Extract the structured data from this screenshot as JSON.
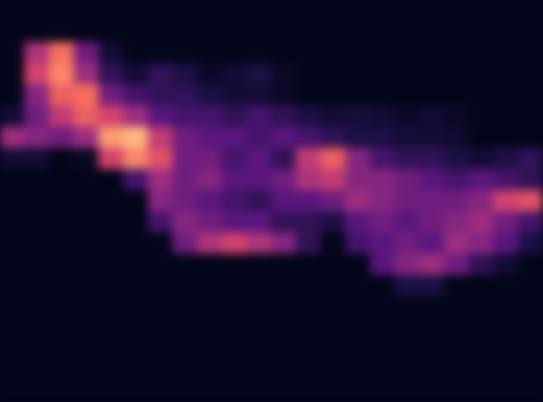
{
  "chart_data": {
    "type": "heatmap",
    "tick_labels": false,
    "zlim": [
      0,
      100
    ],
    "cells": [
      [
        0,
        0,
        0,
        0,
        0,
        0,
        0,
        0,
        0,
        0,
        0,
        0,
        0,
        0,
        0,
        0,
        0,
        0,
        0,
        0,
        0,
        0
      ],
      [
        0,
        0,
        0,
        0,
        0,
        0,
        0,
        0,
        0,
        0,
        0,
        0,
        0,
        0,
        0,
        0,
        0,
        0,
        0,
        0,
        0,
        0
      ],
      [
        0,
        50,
        75,
        35,
        10,
        0,
        0,
        0,
        0,
        0,
        0,
        0,
        0,
        0,
        0,
        0,
        0,
        0,
        0,
        0,
        0,
        0
      ],
      [
        0,
        60,
        80,
        45,
        20,
        10,
        20,
        15,
        5,
        10,
        15,
        5,
        0,
        0,
        0,
        0,
        0,
        0,
        0,
        0,
        0,
        0
      ],
      [
        0,
        40,
        70,
        75,
        35,
        25,
        20,
        20,
        15,
        10,
        10,
        5,
        0,
        0,
        0,
        0,
        0,
        0,
        0,
        0,
        0,
        0
      ],
      [
        10,
        35,
        55,
        70,
        60,
        45,
        30,
        25,
        25,
        20,
        25,
        20,
        15,
        10,
        12,
        10,
        5,
        8,
        5,
        0,
        0,
        0
      ],
      [
        45,
        40,
        35,
        45,
        85,
        90,
        55,
        35,
        30,
        30,
        25,
        30,
        25,
        20,
        15,
        15,
        10,
        10,
        8,
        0,
        0,
        0
      ],
      [
        10,
        10,
        0,
        5,
        60,
        80,
        65,
        35,
        35,
        25,
        30,
        20,
        55,
        70,
        40,
        25,
        20,
        20,
        15,
        10,
        15,
        20
      ],
      [
        0,
        0,
        0,
        0,
        0,
        25,
        45,
        35,
        40,
        30,
        30,
        35,
        50,
        55,
        40,
        40,
        35,
        30,
        25,
        30,
        25,
        20
      ],
      [
        0,
        0,
        0,
        0,
        0,
        0,
        40,
        35,
        30,
        25,
        20,
        30,
        30,
        35,
        45,
        40,
        35,
        35,
        35,
        40,
        60,
        65
      ],
      [
        0,
        0,
        0,
        0,
        0,
        0,
        25,
        40,
        35,
        30,
        30,
        20,
        20,
        15,
        30,
        35,
        30,
        35,
        40,
        45,
        35,
        25
      ],
      [
        0,
        0,
        0,
        0,
        0,
        0,
        0,
        35,
        50,
        60,
        50,
        40,
        20,
        0,
        25,
        30,
        35,
        30,
        45,
        40,
        30,
        15
      ],
      [
        0,
        0,
        0,
        0,
        0,
        0,
        0,
        0,
        0,
        0,
        0,
        0,
        0,
        0,
        0,
        30,
        40,
        45,
        35,
        20,
        10,
        0
      ],
      [
        0,
        0,
        0,
        0,
        0,
        0,
        0,
        0,
        0,
        0,
        0,
        0,
        0,
        0,
        0,
        0,
        15,
        15,
        0,
        0,
        0,
        0
      ],
      [
        0,
        0,
        0,
        0,
        0,
        0,
        0,
        0,
        0,
        0,
        0,
        0,
        0,
        0,
        0,
        0,
        0,
        0,
        0,
        0,
        0,
        0
      ],
      [
        0,
        0,
        0,
        0,
        0,
        0,
        0,
        0,
        0,
        0,
        0,
        0,
        0,
        0,
        0,
        0,
        0,
        0,
        0,
        0,
        0,
        0
      ],
      [
        0,
        0,
        0,
        0,
        0,
        0,
        0,
        0,
        0,
        0,
        0,
        0,
        0,
        0,
        0,
        0,
        0,
        0,
        0,
        0,
        0,
        0
      ],
      [
        0,
        0,
        0,
        0,
        0,
        0,
        0,
        0,
        0,
        0,
        0,
        0,
        0,
        0,
        0,
        0,
        0,
        0,
        0,
        0,
        0,
        0
      ],
      [
        0,
        0,
        0,
        0,
        0,
        0,
        0,
        0,
        0,
        0,
        0,
        0,
        0,
        0,
        0,
        0,
        0,
        0,
        0,
        0,
        0,
        0
      ]
    ]
  }
}
